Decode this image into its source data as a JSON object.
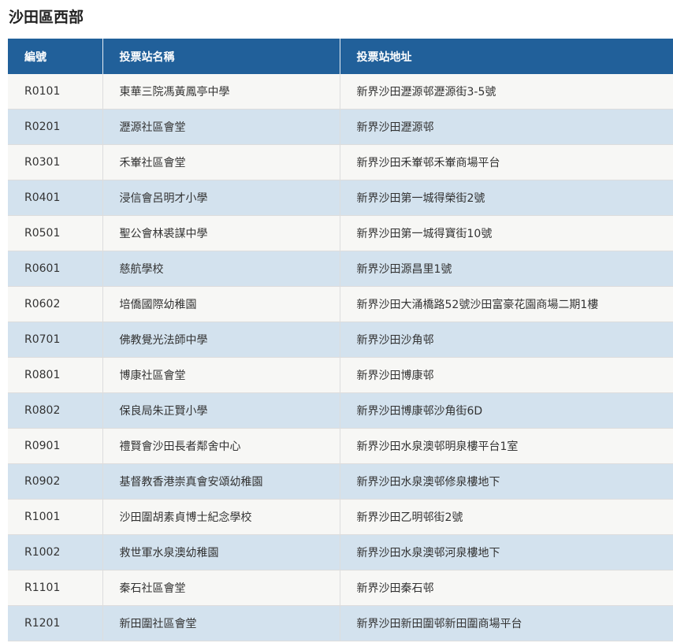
{
  "title": "沙田區西部",
  "colors": {
    "header_bg": "#21609a",
    "row_odd": "#f7f7f5",
    "row_even": "#d3e2ee"
  },
  "table": {
    "headers": [
      "編號",
      "投票站名稱",
      "投票站地址"
    ],
    "rows": [
      [
        "R0101",
        "東華三院馮黃鳳亭中學",
        "新界沙田瀝源邨瀝源街3-5號"
      ],
      [
        "R0201",
        "瀝源社區會堂",
        "新界沙田瀝源邨"
      ],
      [
        "R0301",
        "禾輋社區會堂",
        "新界沙田禾輋邨禾輋商場平台"
      ],
      [
        "R0401",
        "浸信會呂明才小學",
        "新界沙田第一城得榮街2號"
      ],
      [
        "R0501",
        "聖公會林裘謀中學",
        "新界沙田第一城得寶街10號"
      ],
      [
        "R0601",
        "慈航學校",
        "新界沙田源昌里1號"
      ],
      [
        "R0602",
        "培僑國際幼稚園",
        "新界沙田大涌橋路52號沙田富豪花園商場二期1樓"
      ],
      [
        "R0701",
        "佛教覺光法師中學",
        "新界沙田沙角邨"
      ],
      [
        "R0801",
        "博康社區會堂",
        "新界沙田博康邨"
      ],
      [
        "R0802",
        "保良局朱正賢小學",
        "新界沙田博康邨沙角街6D"
      ],
      [
        "R0901",
        "禮賢會沙田長者鄰舍中心",
        "新界沙田水泉澳邨明泉樓平台1室"
      ],
      [
        "R0902",
        "基督教香港崇真會安頌幼稚園",
        "新界沙田水泉澳邨修泉樓地下"
      ],
      [
        "R1001",
        "沙田圍胡素貞博士紀念學校",
        "新界沙田乙明邨街2號"
      ],
      [
        "R1002",
        "救世軍水泉澳幼稚園",
        "新界沙田水泉澳邨河泉樓地下"
      ],
      [
        "R1101",
        "秦石社區會堂",
        "新界沙田秦石邨"
      ],
      [
        "R1201",
        "新田圍社區會堂",
        "新界沙田新田圍邨新田圍商場平台"
      ]
    ]
  }
}
